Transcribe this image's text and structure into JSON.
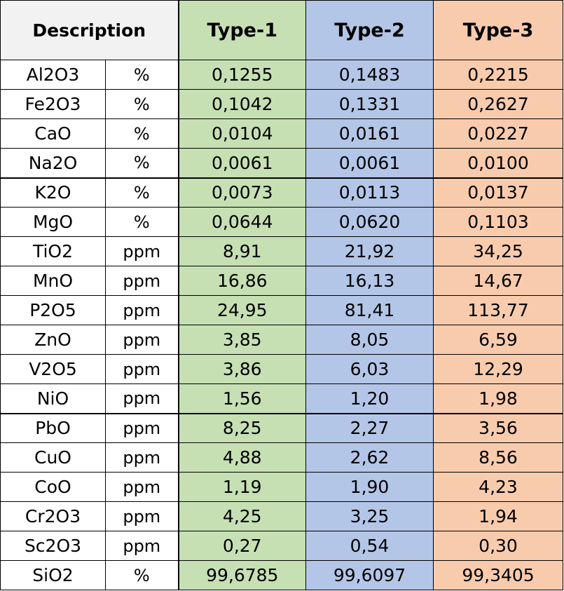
{
  "colors": {
    "type1_bg": "#c6e0b4",
    "type2_bg": "#b4c6e7",
    "type3_bg": "#f8cbad",
    "header_bg": "#f2f2f2"
  },
  "header": {
    "description": "Description",
    "type1": "Type-1",
    "type2": "Type-2",
    "type3": "Type-3"
  },
  "rows": [
    {
      "desc": "Al2O3",
      "unit": "%",
      "t1": "0,1255",
      "t2": "0,1483",
      "t3": "0,2215"
    },
    {
      "desc": "Fe2O3",
      "unit": "%",
      "t1": "0,1042",
      "t2": "0,1331",
      "t3": "0,2627"
    },
    {
      "desc": "CaO",
      "unit": "%",
      "t1": "0,0104",
      "t2": "0,0161",
      "t3": "0,0227"
    },
    {
      "desc": "Na2O",
      "unit": "%",
      "t1": "0,0061",
      "t2": "0,0061",
      "t3": "0,0100"
    },
    {
      "desc": "K2O",
      "unit": "%",
      "t1": "0,0073",
      "t2": "0,0113",
      "t3": "0,0137"
    },
    {
      "desc": "MgO",
      "unit": "%",
      "t1": "0,0644",
      "t2": "0,0620",
      "t3": "0,1103"
    },
    {
      "desc": "TiO2",
      "unit": "ppm",
      "t1": "8,91",
      "t2": "21,92",
      "t3": "34,25"
    },
    {
      "desc": "MnO",
      "unit": "ppm",
      "t1": "16,86",
      "t2": "16,13",
      "t3": "14,67"
    },
    {
      "desc": "P2O5",
      "unit": "ppm",
      "t1": "24,95",
      "t2": "81,41",
      "t3": "113,77"
    },
    {
      "desc": "ZnO",
      "unit": "ppm",
      "t1": "3,85",
      "t2": "8,05",
      "t3": "6,59"
    },
    {
      "desc": "V2O5",
      "unit": "ppm",
      "t1": "3,86",
      "t2": "6,03",
      "t3": "12,29"
    },
    {
      "desc": "NiO",
      "unit": "ppm",
      "t1": "1,56",
      "t2": "1,20",
      "t3": "1,98"
    },
    {
      "desc": "PbO",
      "unit": "ppm",
      "t1": "8,25",
      "t2": "2,27",
      "t3": "3,56"
    },
    {
      "desc": "CuO",
      "unit": "ppm",
      "t1": "4,88",
      "t2": "2,62",
      "t3": "8,56"
    },
    {
      "desc": "CoO",
      "unit": "ppm",
      "t1": "1,19",
      "t2": "1,90",
      "t3": "4,23"
    },
    {
      "desc": "Cr2O3",
      "unit": "ppm",
      "t1": "4,25",
      "t2": "3,25",
      "t3": "1,94"
    },
    {
      "desc": "Sc2O3",
      "unit": "ppm",
      "t1": "0,27",
      "t2": "0,54",
      "t3": "0,30"
    },
    {
      "desc": "SiO2",
      "unit": "%",
      "t1": "99,6785",
      "t2": "99,6097",
      "t3": "99,3405"
    }
  ]
}
